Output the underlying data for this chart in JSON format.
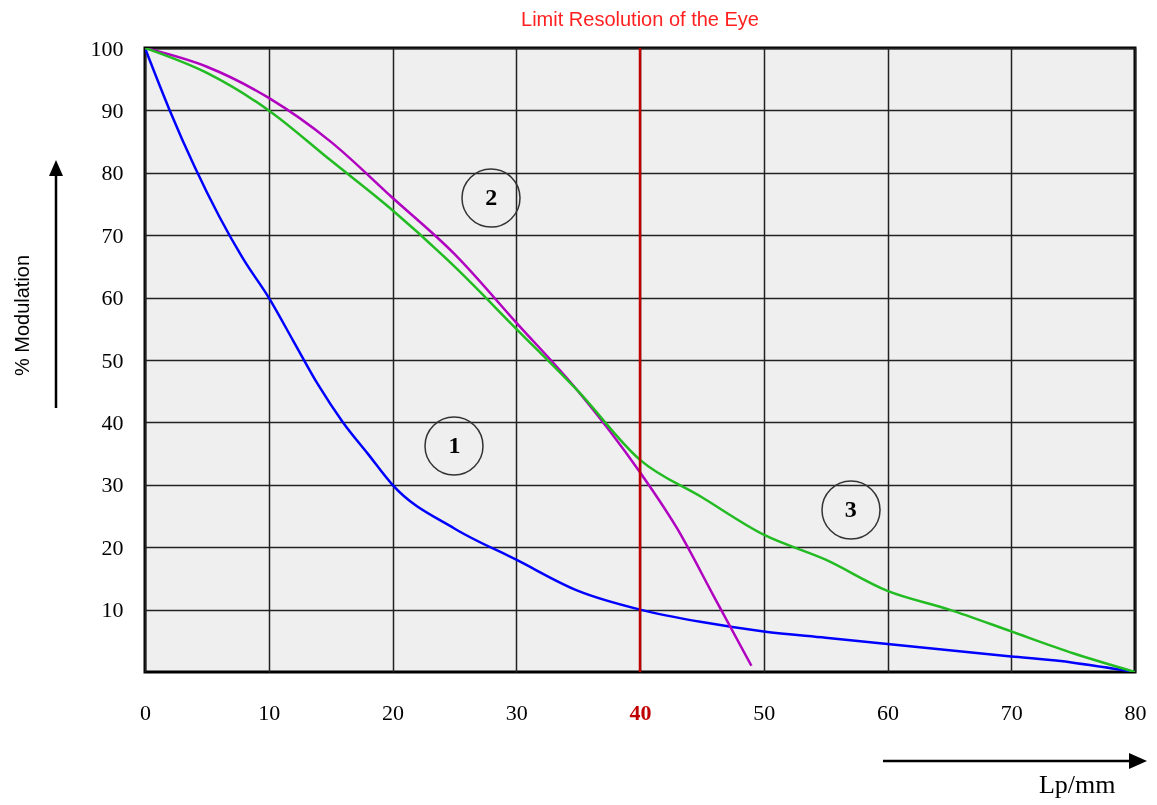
{
  "chart_data": {
    "type": "line",
    "xlabel": "Lp/mm",
    "ylabel": "% Modulation",
    "xlim": [
      0,
      80
    ],
    "ylim": [
      0,
      100
    ],
    "xticks": [
      0,
      10,
      20,
      30,
      40,
      50,
      60,
      70,
      80
    ],
    "yticks": [
      10,
      20,
      30,
      40,
      50,
      60,
      70,
      80,
      90,
      100
    ],
    "grid": true,
    "line_style": "solid",
    "marker": "none",
    "series": [
      {
        "name": "1",
        "color": "#0000ff",
        "x": [
          0,
          2,
          4,
          6,
          8,
          10,
          12,
          14,
          16,
          18,
          20,
          25,
          30,
          35,
          40,
          45,
          50,
          55,
          60,
          65,
          70,
          75,
          80
        ],
        "values": [
          100,
          90,
          81,
          73,
          66,
          60,
          53,
          46,
          40,
          35,
          30,
          23,
          18,
          13,
          10,
          8,
          6.5,
          5.5,
          4.5,
          3.5,
          2.5,
          1.5,
          0
        ]
      },
      {
        "name": "2",
        "color": "#b000c0",
        "x": [
          0,
          5,
          10,
          15,
          20,
          25,
          30,
          35,
          40,
          43,
          46,
          49
        ],
        "values": [
          100,
          97,
          92,
          85,
          76,
          67,
          56,
          45,
          32,
          23,
          12,
          1
        ]
      },
      {
        "name": "3",
        "color": "#22bb22",
        "x": [
          0,
          5,
          10,
          15,
          20,
          25,
          30,
          35,
          40,
          45,
          50,
          55,
          60,
          65,
          70,
          75,
          80
        ],
        "values": [
          100,
          96,
          90,
          82,
          74,
          65,
          55,
          45,
          34,
          28,
          22,
          18,
          13,
          10,
          6.5,
          3,
          0
        ]
      }
    ],
    "ref_lines": [
      {
        "axis": "x",
        "value": 40,
        "label": "Limit Resolution of the Eye",
        "color": "#c00000"
      }
    ]
  }
}
